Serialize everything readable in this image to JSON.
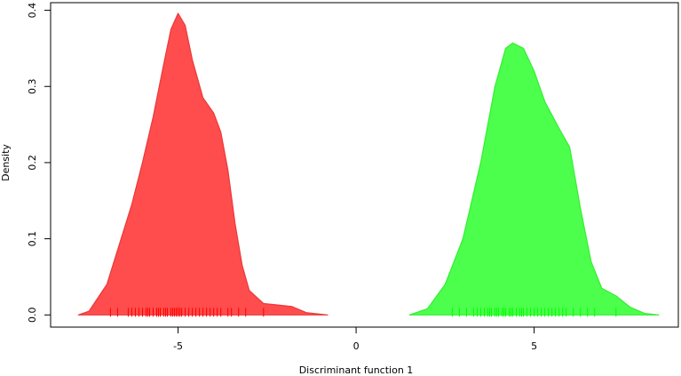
{
  "chart_data": {
    "type": "area",
    "x_label": "Discriminant function 1",
    "y_label": "Density",
    "xlim": [
      -8.58,
      9.05
    ],
    "ylim": [
      -0.016,
      0.41
    ],
    "xticks": [
      -5,
      0,
      5
    ],
    "yticks": [
      {
        "value": 0,
        "label": "0.0"
      },
      0.1,
      0.2,
      0.3,
      0.4
    ],
    "series": [
      {
        "color": "#ff4c4c",
        "stroke": "#e83a3a",
        "rug_color": "#ff0000",
        "x": [
          -7.8,
          -7.5,
          -7.0,
          -6.6,
          -6.3,
          -6.0,
          -5.7,
          -5.4,
          -5.2,
          -5.0,
          -4.8,
          -4.6,
          -4.3,
          -4.0,
          -3.8,
          -3.6,
          -3.4,
          -3.2,
          -3.0,
          -2.6,
          -2.2,
          -1.8,
          -1.4,
          -0.8
        ],
        "values": [
          0.0,
          0.005,
          0.04,
          0.1,
          0.145,
          0.2,
          0.26,
          0.33,
          0.375,
          0.396,
          0.38,
          0.335,
          0.285,
          0.265,
          0.24,
          0.19,
          0.12,
          0.065,
          0.032,
          0.015,
          0.013,
          0.011,
          0.003,
          0.0
        ],
        "rug": [
          -6.9,
          -6.7,
          -6.4,
          -6.3,
          -6.2,
          -6.1,
          -6.0,
          -5.9,
          -5.85,
          -5.8,
          -5.7,
          -5.6,
          -5.55,
          -5.5,
          -5.4,
          -5.35,
          -5.3,
          -5.2,
          -5.15,
          -5.1,
          -5.05,
          -5.0,
          -4.95,
          -4.9,
          -4.8,
          -4.7,
          -4.6,
          -4.5,
          -4.4,
          -4.3,
          -4.2,
          -4.1,
          -4.0,
          -3.9,
          -3.8,
          -3.6,
          -3.5,
          -3.3,
          -3.1,
          -2.6
        ]
      },
      {
        "color": "#4cff4c",
        "stroke": "#33ee33",
        "rug_color": "#00ff00",
        "x": [
          1.5,
          2.0,
          2.5,
          3.0,
          3.5,
          3.9,
          4.2,
          4.4,
          4.7,
          5.0,
          5.3,
          5.7,
          6.0,
          6.3,
          6.6,
          6.9,
          7.3,
          7.7,
          8.1,
          8.5
        ],
        "values": [
          0.0,
          0.008,
          0.04,
          0.1,
          0.2,
          0.3,
          0.35,
          0.357,
          0.35,
          0.32,
          0.28,
          0.245,
          0.22,
          0.14,
          0.07,
          0.035,
          0.025,
          0.01,
          0.002,
          0.0
        ],
        "rug": [
          2.7,
          2.9,
          3.1,
          3.3,
          3.4,
          3.5,
          3.6,
          3.7,
          3.75,
          3.8,
          3.9,
          3.95,
          4.0,
          4.1,
          4.15,
          4.2,
          4.3,
          4.35,
          4.4,
          4.5,
          4.6,
          4.65,
          4.7,
          4.8,
          4.9,
          5.0,
          5.1,
          5.2,
          5.3,
          5.4,
          5.5,
          5.6,
          5.7,
          5.8,
          5.9,
          6.1,
          6.3,
          6.5,
          6.7,
          7.3
        ]
      }
    ]
  }
}
